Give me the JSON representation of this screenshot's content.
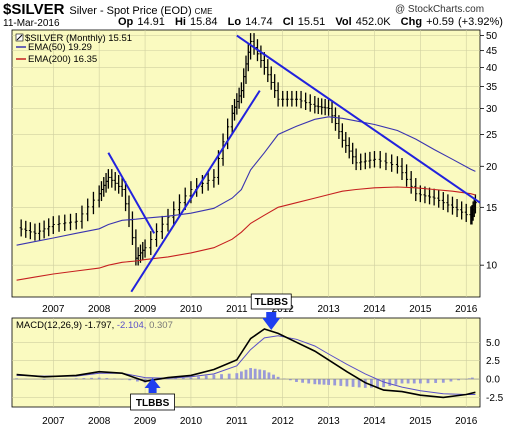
{
  "header": {
    "symbol": "$SILVER",
    "subtitle": "Silver - Spot Price (EOD)",
    "exchange": "CME",
    "date": "11-Mar-2016",
    "brand": "@ StockCharts.com",
    "ohlc": [
      {
        "k": "Op",
        "v": "14.91"
      },
      {
        "k": "Hi",
        "v": "15.84"
      },
      {
        "k": "Lo",
        "v": "14.74"
      },
      {
        "k": "Cl",
        "v": "15.51"
      },
      {
        "k": "Vol",
        "v": "452.0K"
      },
      {
        "k": "Chg",
        "v": "+0.59 (+3.92%)"
      }
    ]
  },
  "colors": {
    "panel_bg": "#fafac0",
    "price_bars": "#000000",
    "ema50": "#3a34b0",
    "ema200": "#c62020",
    "trendline": "#2222dd",
    "macd_line": "#000000",
    "signal_line": "#5a50c8",
    "histogram": "#9a9ad8",
    "arrow": "#1f3ff0"
  },
  "chart_data": [
    {
      "type": "line",
      "name": "price",
      "legend": {
        "symbol_label": "$SILVER (Monthly) 15.51",
        "ema50_label": "EMA(50) 19.29",
        "ema200_label": "EMA(200) 16.35"
      },
      "y_scale": "log",
      "ylim": [
        8,
        52
      ],
      "y_ticks": [
        "50",
        "45",
        "40",
        "35",
        "30",
        "25",
        "20",
        "15",
        "10"
      ],
      "x_ticks": [
        "2007",
        "2008",
        "2009",
        "2010",
        "2011",
        "2012",
        "2013",
        "2014",
        "2015",
        "2016"
      ],
      "xlim": [
        2006.1,
        2016.3
      ],
      "x": [
        2006.2,
        2006.6,
        2007.0,
        2007.5,
        2008.0,
        2008.2,
        2008.5,
        2008.8,
        2009.0,
        2009.5,
        2010.0,
        2010.5,
        2010.9,
        2011.1,
        2011.3,
        2011.6,
        2011.9,
        2012.3,
        2012.7,
        2013.0,
        2013.3,
        2013.6,
        2014.0,
        2014.5,
        2014.9,
        2015.3,
        2015.7,
        2016.1,
        2016.2
      ],
      "series": [
        {
          "values": [
            13.0,
            12.5,
            13.3,
            13.6,
            16.5,
            18.5,
            17.0,
            10.5,
            11.3,
            14.0,
            17.0,
            18.5,
            29.0,
            34.0,
            48.0,
            40.0,
            32.0,
            32.0,
            30.5,
            30.0,
            24.0,
            20.5,
            21.0,
            20.0,
            16.5,
            16.0,
            15.0,
            14.0,
            15.5
          ]
        },
        {
          "values": [
            11.5,
            11.8,
            12.1,
            12.5,
            12.9,
            13.3,
            13.7,
            13.8,
            13.9,
            14.1,
            14.4,
            14.9,
            16.0,
            17.0,
            19.5,
            22.0,
            25.0,
            26.5,
            27.8,
            28.3,
            28.0,
            27.5,
            26.8,
            25.7,
            24.2,
            22.5,
            21.0,
            19.6,
            19.3
          ]
        },
        {
          "values": [
            9.0,
            9.2,
            9.4,
            9.6,
            9.8,
            10.0,
            10.2,
            10.3,
            10.4,
            10.6,
            10.9,
            11.3,
            12.0,
            12.6,
            13.4,
            14.2,
            15.0,
            15.5,
            16.0,
            16.4,
            16.8,
            17.0,
            17.2,
            17.3,
            17.2,
            17.0,
            16.8,
            16.5,
            16.35
          ]
        }
      ]
    },
    {
      "type": "line",
      "name": "macd",
      "label": "MACD(12,26,9)",
      "values_label": [
        -1.797,
        -2.104,
        0.307
      ],
      "ylim": [
        -3.8,
        8.3
      ],
      "y_ticks": [
        "5.0",
        "2.5",
        "0.0",
        "-2.5"
      ],
      "x_ticks": [
        "2007",
        "2008",
        "2009",
        "2010",
        "2011",
        "2012",
        "2013",
        "2014",
        "2015",
        "2016"
      ],
      "xlim": [
        2006.1,
        2016.3
      ],
      "x": [
        2006.2,
        2006.8,
        2007.5,
        2008.0,
        2008.5,
        2009.0,
        2009.5,
        2010.0,
        2010.5,
        2011.0,
        2011.3,
        2011.6,
        2011.9,
        2012.3,
        2012.7,
        2013.0,
        2013.4,
        2013.8,
        2014.2,
        2014.6,
        2015.0,
        2015.5,
        2016.0,
        2016.2
      ],
      "series": [
        {
          "values": [
            0.6,
            0.3,
            0.5,
            1.0,
            0.8,
            -0.3,
            0.2,
            0.5,
            1.3,
            2.6,
            5.5,
            6.8,
            6.2,
            5.0,
            3.8,
            2.6,
            1.0,
            -0.5,
            -1.5,
            -1.7,
            -2.2,
            -2.5,
            -2.1,
            -1.8
          ]
        },
        {
          "values": [
            0.5,
            0.4,
            0.4,
            0.8,
            0.8,
            0.2,
            0.1,
            0.3,
            0.7,
            1.8,
            4.0,
            5.6,
            5.9,
            5.4,
            4.5,
            3.4,
            2.0,
            0.7,
            -0.4,
            -1.1,
            -1.6,
            -2.0,
            -2.1,
            -2.1
          ]
        }
      ],
      "histogram": [
        0.1,
        -0.1,
        0.1,
        0.2,
        0.0,
        -0.5,
        0.1,
        0.2,
        0.6,
        0.8,
        1.5,
        1.2,
        0.3,
        -0.4,
        -0.7,
        -0.8,
        -1.0,
        -1.2,
        -1.1,
        -0.6,
        -0.6,
        -0.5,
        0.0,
        0.3
      ]
    }
  ],
  "annotations": [
    {
      "label": "TLBBS",
      "x": 2011.75
    },
    {
      "label": "TLBBS",
      "x": 2009.6
    }
  ]
}
